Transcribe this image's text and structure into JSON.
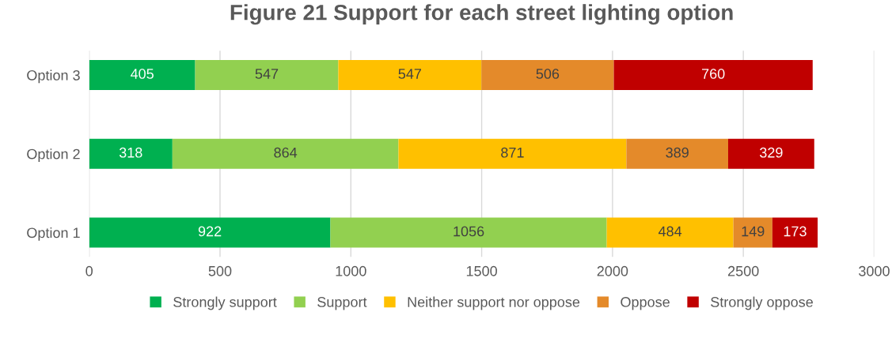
{
  "chart_data": {
    "type": "bar",
    "orientation": "horizontal",
    "stacked": true,
    "title": "Figure 21 Support for each street lighting option",
    "categories": [
      "Option 3",
      "Option 2",
      "Option 1"
    ],
    "series": [
      {
        "name": "Strongly support",
        "color": "#00b050",
        "values": [
          405,
          318,
          922
        ]
      },
      {
        "name": "Support",
        "color": "#92d050",
        "values": [
          547,
          864,
          1056
        ]
      },
      {
        "name": "Neither support nor oppose",
        "color": "#ffc000",
        "values": [
          547,
          871,
          484
        ]
      },
      {
        "name": "Oppose",
        "color": "#e48a2a",
        "values": [
          506,
          389,
          149
        ]
      },
      {
        "name": "Strongly oppose",
        "color": "#c00000",
        "values": [
          760,
          329,
          173
        ]
      }
    ],
    "xlim": [
      0,
      3000
    ],
    "xticks": [
      0,
      500,
      1000,
      1500,
      2000,
      2500,
      3000
    ],
    "grid": "x",
    "legend": "bottom",
    "data_labels": true
  }
}
